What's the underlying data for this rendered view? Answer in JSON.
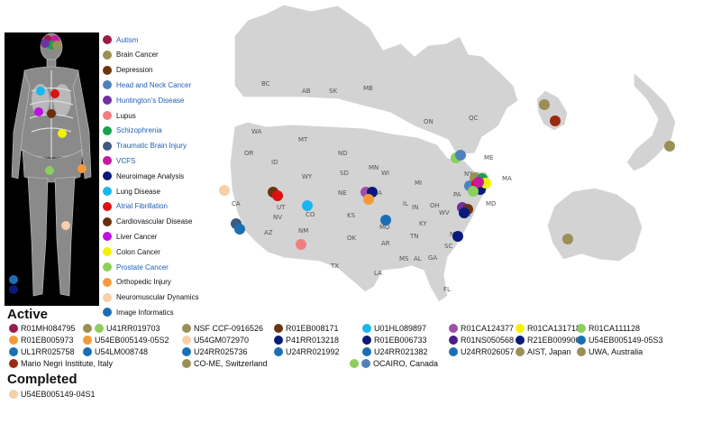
{
  "colors": {
    "map_fill": "#d3d3d3",
    "map_border": "#ffffff",
    "link_text": "#1f5fb8"
  },
  "conditions": [
    {
      "label": "Autism",
      "color": "#9b1b4b",
      "link": true
    },
    {
      "label": "Brain Cancer",
      "color": "#9a8f57",
      "link": false
    },
    {
      "label": "Depression",
      "color": "#6b3410",
      "link": false
    },
    {
      "label": "Head and Neck Cancer",
      "color": "#4f81bd",
      "link": true
    },
    {
      "label": "Huntington's Disease",
      "color": "#7030a0",
      "link": true
    },
    {
      "label": "Lupus",
      "color": "#f08080",
      "link": false
    },
    {
      "label": "Schizophrenia",
      "color": "#16a34a",
      "link": true
    },
    {
      "label": "Traumatic Brain Injury",
      "color": "#3d5a80",
      "link": true
    },
    {
      "label": "VCFS",
      "color": "#c8189e",
      "link": true
    },
    {
      "label": "Neuroimage Analysis",
      "color": "#0a1a7a",
      "link": false
    },
    {
      "label": "Lung Disease",
      "color": "#19b6f0",
      "link": false
    },
    {
      "label": "Atrial Fibrillation",
      "color": "#e01010",
      "link": true
    },
    {
      "label": "Cardiovascular Disease",
      "color": "#6b2d0e",
      "link": false
    },
    {
      "label": "Liver Cancer",
      "color": "#c010e0",
      "link": false
    },
    {
      "label": "Colon Cancer",
      "color": "#f2f200",
      "link": false
    },
    {
      "label": "Prostate Cancer",
      "color": "#8ccf5a",
      "link": true
    },
    {
      "label": "Orthopedic Injury",
      "color": "#f59a3a",
      "link": false
    },
    {
      "label": "Neuromuscular Dynamics",
      "color": "#f7cfa8",
      "link": false
    },
    {
      "label": "Image Informatics",
      "color": "#1a6fb4",
      "link": false
    }
  ],
  "states": [
    "BC",
    "AB",
    "SK",
    "MB",
    "ON",
    "QC",
    "WA",
    "MT",
    "ND",
    "MN",
    "ME",
    "OR",
    "ID",
    "SD",
    "WI",
    "MI",
    "NY",
    "MA",
    "WY",
    "NE",
    "IA",
    "PA",
    "CT",
    "NV",
    "UT",
    "CO",
    "KS",
    "MO",
    "IL",
    "IN",
    "OH",
    "WV",
    "VA",
    "MD",
    "CA",
    "KY",
    "AZ",
    "NM",
    "OK",
    "AR",
    "TN",
    "NC",
    "SC",
    "MS",
    "AL",
    "GA",
    "TX",
    "LA",
    "FL"
  ],
  "active": {
    "title": "Active",
    "grants": [
      {
        "label": "R01MH084795",
        "colors": [
          "#9b1b4b"
        ]
      },
      {
        "label": "U41RR019703",
        "colors": [
          "#9a8f57",
          "#8ccf5a"
        ]
      },
      {
        "label": "NSF CCF-0916526",
        "colors": [
          "#9a8f57"
        ]
      },
      {
        "label": "R01EB008171",
        "colors": [
          "#6b3410"
        ]
      },
      {
        "label": "U01HL089897",
        "colors": [
          "#19b6f0"
        ]
      },
      {
        "label": "R01CA124377",
        "colors": [
          "#9f4fa8"
        ]
      },
      {
        "label": "R01CA131718",
        "colors": [
          "#f2f200"
        ]
      },
      {
        "label": "R01CA111128",
        "colors": [
          "#8ccf5a"
        ]
      },
      {
        "label": "R01EB005973",
        "colors": [
          "#f59a3a"
        ]
      },
      {
        "label": "U54EB005149-05S2",
        "colors": [
          "#f59a3a"
        ]
      },
      {
        "label": "U54GM072970",
        "colors": [
          "#f7cfa8"
        ]
      },
      {
        "label": "P41RR013218",
        "colors": [
          "#0a1a7a"
        ]
      },
      {
        "label": "R01EB006733",
        "colors": [
          "#0a1a7a"
        ]
      },
      {
        "label": "R01NS050568",
        "colors": [
          "#4b1d8a"
        ]
      },
      {
        "label": "R21EB009900",
        "colors": [
          "#0a1a7a"
        ]
      },
      {
        "label": "U54EB005149-05S3",
        "colors": [
          "#1a6fb4"
        ]
      },
      {
        "label": "UL1RR025758",
        "colors": [
          "#1a6fb4"
        ]
      },
      {
        "label": "U54LM008748",
        "colors": [
          "#1a6fb4"
        ]
      },
      {
        "label": "U24RR025736",
        "colors": [
          "#1a6fb4"
        ]
      },
      {
        "label": "U24RR021992",
        "colors": [
          "#1a6fb4"
        ]
      },
      {
        "label": "U24RR021382",
        "colors": [
          "#1a6fb4"
        ]
      },
      {
        "label": "U24RR026057",
        "colors": [
          "#1a6fb4"
        ]
      },
      {
        "label": "AIST, Japan",
        "colors": [
          "#9a8f57"
        ]
      },
      {
        "label": "UWA, Australia",
        "colors": [
          "#9a8f57"
        ]
      },
      {
        "label": "Mario Negri Institute, Italy",
        "colors": [
          "#9b2a10"
        ]
      },
      {
        "label": "CO-ME, Switzerland",
        "colors": [
          "#9a8f57"
        ]
      },
      {
        "label": "OCAIRO, Canada",
        "colors": [
          "#8ccf5a",
          "#4f81bd"
        ]
      }
    ]
  },
  "completed": {
    "title": "Completed",
    "grants": [
      {
        "label": "U54EB005149-04S1",
        "colors": [
          "#f7cfa8"
        ]
      }
    ]
  }
}
